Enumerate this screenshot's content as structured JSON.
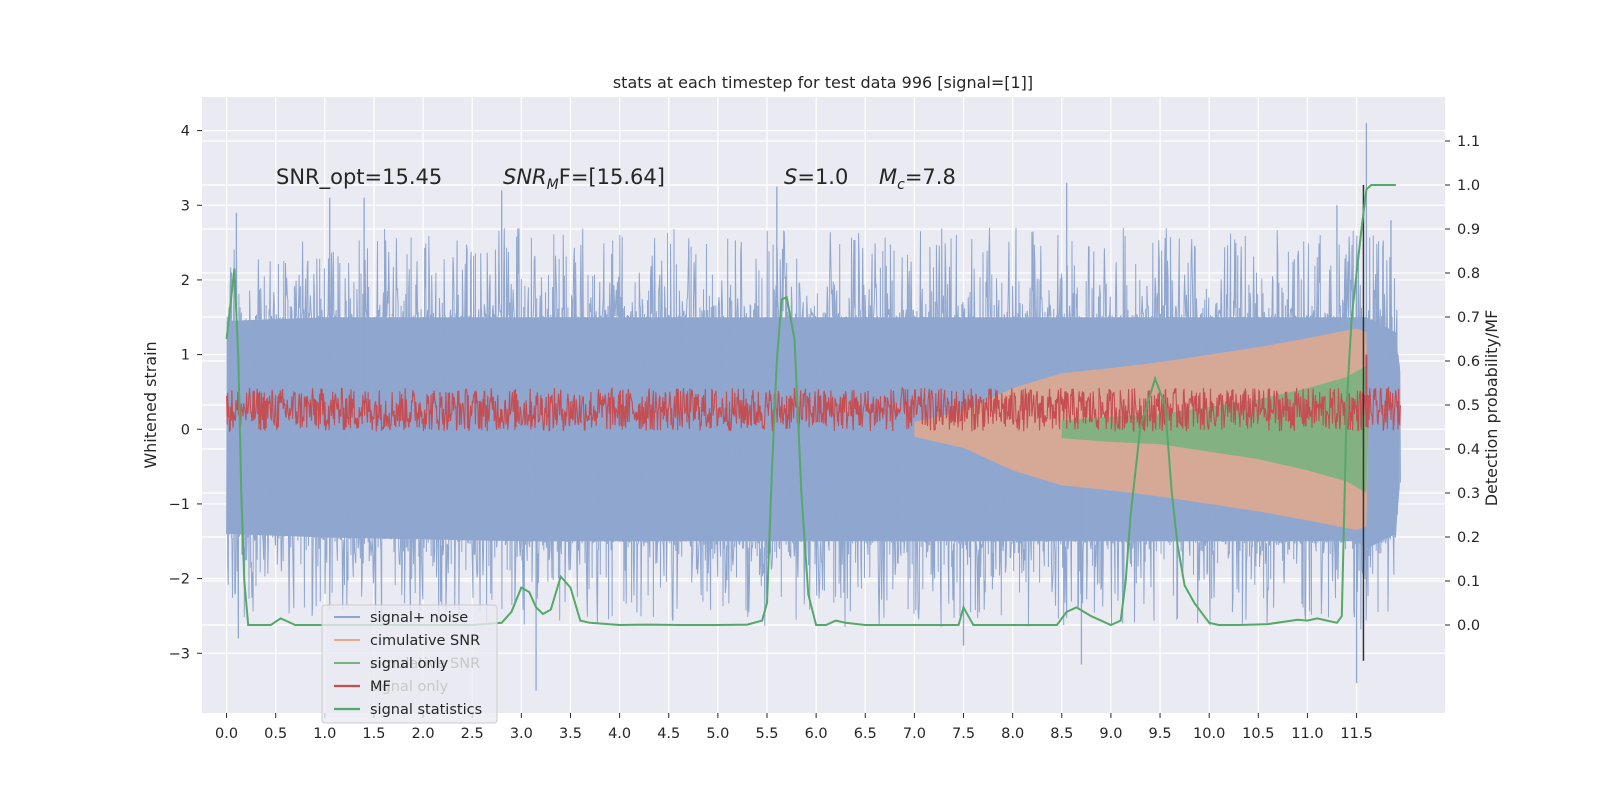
{
  "chart_data": {
    "type": "line",
    "title": "stats at each timestep for test data 996 [signal=[1]]",
    "xlabel": "",
    "ylabel": "Whitened strain",
    "y2label": "Detection probability/MF",
    "xlim": [
      -0.25,
      12.4
    ],
    "ylim": [
      -3.8,
      4.45
    ],
    "y2lim": [
      -0.2,
      1.2
    ],
    "xticks": [
      "0.0",
      "0.5",
      "1.0",
      "1.5",
      "2.0",
      "2.5",
      "3.0",
      "3.5",
      "4.0",
      "4.5",
      "5.0",
      "5.5",
      "6.0",
      "6.5",
      "7.0",
      "7.5",
      "8.0",
      "8.5",
      "9.0",
      "9.5",
      "10.0",
      "10.5",
      "11.0",
      "11.5"
    ],
    "yticks": [
      "4",
      "3",
      "2",
      "1",
      "0",
      "−1",
      "−2",
      "−3"
    ],
    "y2ticks": [
      "1.1",
      "1.0",
      "0.9",
      "0.8",
      "0.7",
      "0.6",
      "0.5",
      "0.4",
      "0.3",
      "0.2",
      "0.1",
      "0.0"
    ],
    "grid": true,
    "legend_position": "lower-left",
    "annotations": {
      "snr_opt": "SNR_opt=15.45",
      "snr_mf_prefix": "SNR",
      "snr_mf_sub": "M",
      "snr_mf_suffix": "F=[15.64]",
      "s_prefix": "S",
      "s_value": "=1.0",
      "mc_prefix": "M",
      "mc_sub": "c",
      "mc_value": "=7.8"
    },
    "series": [
      {
        "name": "signal+ noise",
        "color": "#8fa6cf",
        "envelope": [
          [
            0.0,
            -1.4,
            1.45
          ],
          [
            1.0,
            -1.45,
            1.5
          ],
          [
            3.0,
            -1.5,
            1.5
          ],
          [
            5.5,
            -1.5,
            1.5
          ],
          [
            8.0,
            -1.5,
            1.5
          ],
          [
            10.0,
            -1.5,
            1.5
          ],
          [
            11.5,
            -1.5,
            1.5
          ],
          [
            11.6,
            -1.6,
            1.5
          ],
          [
            11.9,
            -1.4,
            1.3
          ],
          [
            11.95,
            -0.6,
            0.6
          ]
        ],
        "peaks": [
          [
            0.05,
            2.1
          ],
          [
            0.1,
            2.9
          ],
          [
            0.12,
            -2.8
          ],
          [
            1.05,
            3.1
          ],
          [
            1.4,
            3.1
          ],
          [
            2.8,
            3.2
          ],
          [
            3.15,
            -3.5
          ],
          [
            5.6,
            3.25
          ],
          [
            8.55,
            3.3
          ],
          [
            8.7,
            -3.15
          ],
          [
            11.5,
            -3.4
          ],
          [
            11.6,
            4.1
          ],
          [
            11.3,
            3.0
          ],
          [
            11.85,
            2.8
          ],
          [
            7.5,
            -2.9
          ]
        ]
      },
      {
        "name": "cimulative SNR",
        "color": "#e3a98c",
        "envelope": [
          [
            7.0,
            -0.1,
            0.1
          ],
          [
            7.5,
            -0.25,
            0.25
          ],
          [
            8.0,
            -0.55,
            0.55
          ],
          [
            8.5,
            -0.75,
            0.75
          ],
          [
            9.0,
            -0.82,
            0.82
          ],
          [
            9.5,
            -0.9,
            0.9
          ],
          [
            10.0,
            -1.0,
            1.0
          ],
          [
            10.5,
            -1.1,
            1.1
          ],
          [
            11.0,
            -1.22,
            1.22
          ],
          [
            11.5,
            -1.35,
            1.35
          ],
          [
            11.6,
            -1.3,
            1.3
          ],
          [
            11.62,
            0,
            0
          ]
        ]
      },
      {
        "name": "signal only",
        "color": "#74b37f",
        "envelope": [
          [
            8.5,
            -0.12,
            0.12
          ],
          [
            9.0,
            -0.17,
            0.17
          ],
          [
            9.5,
            -0.2,
            0.2
          ],
          [
            10.0,
            -0.3,
            0.3
          ],
          [
            10.5,
            -0.4,
            0.4
          ],
          [
            11.0,
            -0.55,
            0.55
          ],
          [
            11.4,
            -0.7,
            0.7
          ],
          [
            11.6,
            -0.85,
            0.85
          ],
          [
            11.62,
            0,
            0
          ]
        ]
      },
      {
        "name": "MF",
        "color": "#c44e52",
        "band": [
          0.0,
          0.18
        ],
        "spike": [
          11.6,
          1.0
        ]
      },
      {
        "name": "signal statistics",
        "color": "#55a868",
        "x": [
          0.0,
          0.04,
          0.08,
          0.12,
          0.15,
          0.18,
          0.22,
          0.3,
          0.45,
          0.55,
          0.7,
          1.0,
          1.5,
          2.0,
          2.5,
          2.8,
          2.9,
          3.0,
          3.08,
          3.15,
          3.22,
          3.3,
          3.4,
          3.5,
          3.6,
          3.7,
          4.0,
          4.3,
          4.6,
          5.0,
          5.3,
          5.45,
          5.5,
          5.55,
          5.6,
          5.65,
          5.7,
          5.78,
          5.85,
          5.92,
          6.0,
          6.05,
          6.1,
          6.2,
          6.3,
          6.5,
          6.8,
          7.0,
          7.3,
          7.45,
          7.5,
          7.55,
          7.6,
          7.7,
          8.0,
          8.3,
          8.45,
          8.55,
          8.65,
          8.8,
          9.0,
          9.1,
          9.15,
          9.2,
          9.3,
          9.45,
          9.55,
          9.62,
          9.68,
          9.75,
          9.85,
          10.0,
          10.1,
          10.3,
          10.6,
          10.9,
          11.0,
          11.1,
          11.2,
          11.3,
          11.35,
          11.4,
          11.45,
          11.5,
          11.55,
          11.6,
          11.65,
          11.7,
          11.8,
          11.9
        ],
        "y": [
          0.65,
          0.73,
          0.81,
          0.6,
          0.3,
          0.1,
          0.0,
          0.0,
          0.0,
          0.015,
          0.0,
          0.0,
          0.0,
          0.0,
          0.0,
          0.005,
          0.03,
          0.085,
          0.075,
          0.04,
          0.025,
          0.035,
          0.11,
          0.085,
          0.01,
          0.005,
          0.0,
          0.001,
          0.0,
          0.0,
          0.001,
          0.01,
          0.05,
          0.35,
          0.6,
          0.74,
          0.745,
          0.65,
          0.3,
          0.07,
          0.0,
          0.0,
          0.0,
          0.01,
          0.005,
          0.0,
          0.0,
          0.0,
          0.0,
          0.0,
          0.04,
          0.02,
          0.0,
          0.0,
          0.0,
          0.0,
          0.0,
          0.03,
          0.04,
          0.02,
          0.0,
          0.01,
          0.1,
          0.25,
          0.45,
          0.56,
          0.5,
          0.3,
          0.18,
          0.09,
          0.05,
          0.005,
          0.0,
          0.0,
          0.002,
          0.012,
          0.01,
          0.015,
          0.01,
          0.005,
          0.02,
          0.5,
          0.7,
          0.8,
          0.9,
          0.99,
          1.0,
          1.0,
          1.0,
          1.0
        ]
      }
    ],
    "legend": [
      {
        "label": "signal+ noise",
        "color": "#8fa6cf",
        "lw": 2
      },
      {
        "label": "cimulative SNR",
        "color": "#e3a98c",
        "lw": 2
      },
      {
        "label": "signal only",
        "color": "#74b37f",
        "lw": 2
      },
      {
        "label": "MF",
        "color": "#c44e52",
        "lw": 2.2
      },
      {
        "label": "signal statistics",
        "color": "#55a868",
        "lw": 2.2
      }
    ],
    "legend_ghost": [
      {
        "label": "cimulative SNR"
      },
      {
        "label": "signal only"
      }
    ]
  }
}
